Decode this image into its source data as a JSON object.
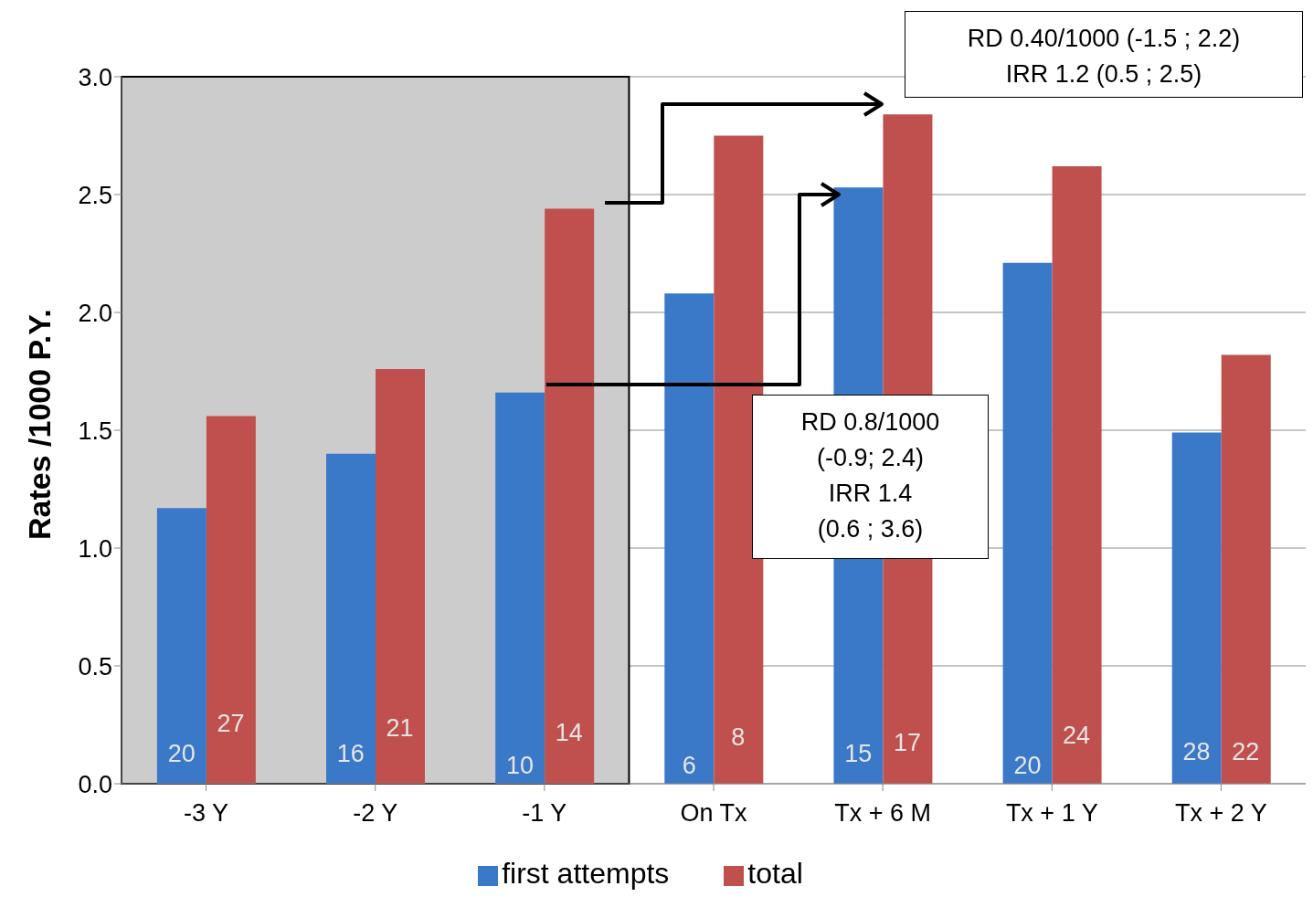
{
  "chart_data": {
    "type": "bar",
    "ylabel": "Rates /1000 P.Y.",
    "categories": [
      "-3 Y",
      "-2 Y",
      "-1 Y",
      "On Tx",
      "Tx + 6 M",
      "Tx + 1 Y",
      "Tx + 2 Y"
    ],
    "series": [
      {
        "name": "first attempts",
        "color": "#3a78c8",
        "values": [
          1.17,
          1.4,
          1.66,
          2.08,
          2.53,
          2.21,
          1.49
        ]
      },
      {
        "name": "total",
        "color": "#c0504d",
        "values": [
          1.56,
          1.76,
          2.44,
          2.75,
          2.84,
          2.62,
          1.82
        ]
      }
    ],
    "ylim": [
      0,
      3
    ],
    "yticks": [
      {
        "value": 0,
        "label": "0.0"
      },
      {
        "value": 0.5,
        "label": "0.5"
      },
      {
        "value": 1,
        "label": "1.0"
      },
      {
        "value": 1.5,
        "label": "1.5"
      },
      {
        "value": 2,
        "label": "2.0"
      },
      {
        "value": 2.5,
        "label": "2.5"
      },
      {
        "value": 3,
        "label": "3.0"
      }
    ],
    "grid": "y",
    "legend": "bottom",
    "bands": [
      {
        "axis": "x",
        "from": "-3 Y",
        "to": "-1 Y",
        "color": "#cccccc"
      }
    ],
    "annotations": [
      "RD 0.40/1000 (-1.5 ; 2.2)\nIRR 1.2 (0.5 ; 2.5)",
      "RD 0.8/1000\n(-0.9; 2.4)\nIRR 1.4\n(0.6 ; 3.6)",
      {
        "text": "20",
        "x": "-3 Y",
        "y": 0.13
      },
      {
        "text": "27",
        "x": "-3 Y",
        "y": 0.26
      },
      {
        "text": "16",
        "x": "-2 Y",
        "y": 0.13
      },
      {
        "text": "21",
        "x": "-2 Y",
        "y": 0.24
      },
      {
        "text": "10",
        "x": "-1 Y",
        "y": 0.08
      },
      {
        "text": "14",
        "x": "-1 Y",
        "y": 0.22
      },
      {
        "text": "6",
        "x": "On Tx",
        "y": 0.08
      },
      {
        "text": "8",
        "x": "On Tx",
        "y": 0.2
      },
      {
        "text": "15",
        "x": "Tx + 6 M",
        "y": 0.13
      },
      {
        "text": "17",
        "x": "Tx + 6 M",
        "y": 0.18
      },
      {
        "text": "20",
        "x": "Tx + 1 Y",
        "y": 0.08
      },
      {
        "text": "24",
        "x": "Tx + 1 Y",
        "y": 0.21
      },
      {
        "text": "28",
        "x": "Tx + 2 Y",
        "y": 0.14
      },
      {
        "text": "22",
        "x": "Tx + 2 Y",
        "y": 0.14
      }
    ]
  }
}
